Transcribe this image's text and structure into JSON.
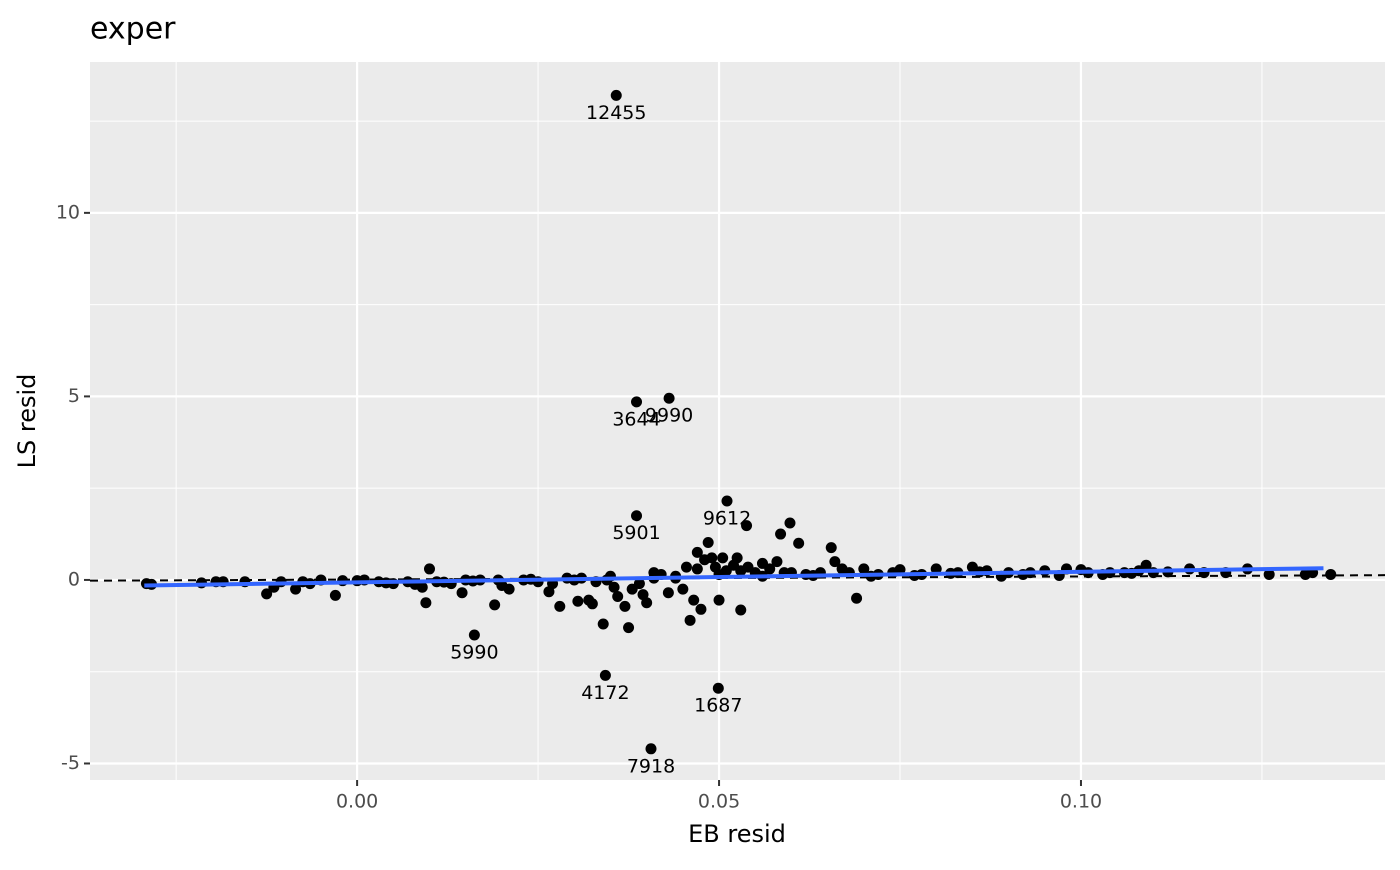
{
  "chart_data": {
    "type": "scatter",
    "title": "exper",
    "x_label": "EB resid",
    "y_label": "LS resid",
    "xlim": [
      -0.0369,
      0.142
    ],
    "ylim": [
      -5.45,
      14.11
    ],
    "xticks": [
      {
        "value": 0,
        "label": "0.00"
      },
      {
        "value": 0.05,
        "label": "0.05"
      },
      {
        "value": 0.1,
        "label": "0.10"
      }
    ],
    "yticks": [
      -5,
      0,
      5,
      10
    ],
    "x_minor_grid": [
      -0.025,
      0.025,
      0.075,
      0.125
    ],
    "y_minor_grid": [
      -2.5,
      2.5,
      7.5,
      12.5
    ],
    "grid": true,
    "point_color": "#000000",
    "points": {
      "x": [
        -0.0291,
        -0.0284,
        -0.0215,
        -0.0195,
        -0.0185,
        -0.0155,
        -0.0125,
        -0.0115,
        -0.0105,
        -0.0085,
        -0.0075,
        -0.0065,
        -0.005,
        -0.003,
        -0.002,
        0.001,
        0.003,
        0.005,
        0.007,
        0.009,
        0.0095,
        0.01,
        0.011,
        0.013,
        0.015,
        0.0145,
        0.017,
        0.019,
        0.0195,
        0.021,
        0.023,
        0.025,
        0.0265,
        0.028,
        0.029,
        0.03,
        0.0305,
        0.032,
        0.0325,
        0.034,
        0.0345,
        0.0355,
        0.036,
        0.037,
        0.0375,
        0.038,
        0.0395,
        0.04,
        0.041,
        0.042,
        0.043,
        0.044,
        0.045,
        0.0455,
        0.046,
        0.0465,
        0.047,
        0.0475,
        0.048,
        0.0485,
        0.049,
        0.0495,
        0.05,
        0.0505,
        0.051,
        0.052,
        0.0525,
        0.053,
        0.054,
        0.0538,
        0.055,
        0.056,
        0.057,
        0.058,
        0.0585,
        0.0598,
        0.06,
        0.061,
        0.062,
        0.064,
        0.0655,
        0.066,
        0.068,
        0.069,
        0.07,
        0.072,
        0.075,
        0.078,
        0.08,
        0.083,
        0.085,
        0.087,
        0.09,
        0.093,
        0.095,
        0.098,
        0.1,
        0.101,
        0.103,
        0.106,
        0.108,
        0.109,
        0.11,
        0.115,
        0.117,
        0.12,
        0.123,
        0.126,
        0.131,
        0.132,
        0.1345,
        0.0,
        0.004,
        0.008,
        0.012,
        0.016,
        0.02,
        0.024,
        0.027,
        0.031,
        0.033,
        0.035,
        0.039,
        0.041,
        0.044,
        0.047,
        0.05,
        0.053,
        0.056,
        0.059,
        0.063,
        0.067,
        0.071,
        0.074,
        0.077,
        0.082,
        0.086,
        0.089,
        0.092,
        0.097,
        0.104,
        0.107,
        0.112
      ],
      "y": [
        -0.1,
        -0.12,
        -0.08,
        -0.05,
        -0.05,
        -0.05,
        -0.38,
        -0.2,
        -0.05,
        -0.25,
        -0.05,
        -0.1,
        0,
        -0.42,
        -0.02,
        0,
        -0.05,
        -0.1,
        -0.05,
        -0.2,
        -0.62,
        0.3,
        -0.05,
        -0.1,
        0,
        -0.35,
        0,
        -0.68,
        0,
        -0.25,
        0,
        -0.05,
        -0.32,
        -0.72,
        0.05,
        0,
        -0.58,
        -0.55,
        -0.65,
        -1.2,
        0,
        -0.2,
        -0.45,
        -0.72,
        -1.3,
        -0.25,
        -0.4,
        -0.62,
        0.05,
        0.15,
        -0.35,
        0.1,
        -0.25,
        0.35,
        -1.1,
        -0.55,
        0.75,
        -0.8,
        0.55,
        1.02,
        0.6,
        0.35,
        -0.55,
        0.6,
        0.25,
        0.4,
        0.6,
        -0.82,
        0.35,
        1.48,
        0.2,
        0.45,
        0.3,
        0.5,
        1.25,
        1.55,
        0.2,
        1.0,
        0.15,
        0.2,
        0.88,
        0.5,
        0.2,
        -0.5,
        0.3,
        0.15,
        0.28,
        0.15,
        0.3,
        0.2,
        0.35,
        0.25,
        0.2,
        0.2,
        0.25,
        0.3,
        0.28,
        0.2,
        0.15,
        0.2,
        0.25,
        0.4,
        0.2,
        0.3,
        0.2,
        0.2,
        0.3,
        0.15,
        0.15,
        0.2,
        0.15,
        -0.02,
        -0.08,
        -0.12,
        -0.06,
        -0.03,
        -0.15,
        0.02,
        -0.1,
        0.05,
        -0.05,
        0.1,
        -0.1,
        0.2,
        0.05,
        0.3,
        0.15,
        0.25,
        0.1,
        0.2,
        0.12,
        0.3,
        0.1,
        0.2,
        0.12,
        0.18,
        0.22,
        0.1,
        0.15,
        0.12,
        0.2,
        0.18,
        0.22
      ]
    },
    "labeled_points": {
      "x": [
        0.0358,
        0.0386,
        0.0431,
        0.0386,
        0.0511,
        0.0162,
        0.0343,
        0.0499,
        0.0406
      ],
      "y": [
        13.2,
        4.85,
        4.95,
        1.75,
        2.15,
        -1.5,
        -2.6,
        -2.95,
        -4.6
      ],
      "labels": [
        "12455",
        "3644",
        "9990",
        "5901",
        "9612",
        "5990",
        "4172",
        "1687",
        "7918"
      ]
    },
    "fit_line": {
      "color": "#3366ff",
      "x": [
        -0.0294,
        0.1335
      ],
      "y": [
        -0.15,
        0.32
      ]
    },
    "reference_line": {
      "color": "#000000",
      "x": [
        -0.0369,
        0.142
      ],
      "y": [
        -0.02,
        0.13
      ]
    }
  }
}
